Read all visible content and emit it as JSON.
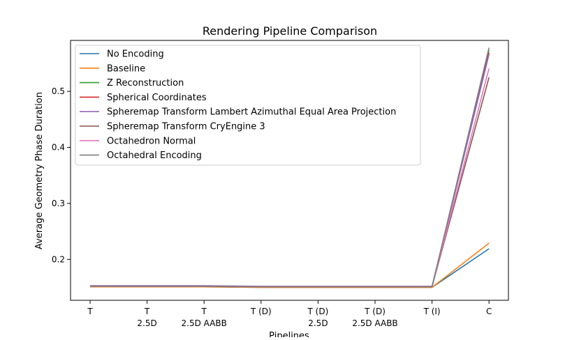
{
  "chart_data": {
    "type": "line",
    "title": "Rendering Pipeline Comparison",
    "xlabel": "Pipelines",
    "ylabel": "Average Geometry Phase Duration",
    "categories": [
      "T",
      "T\n2.5D",
      "T\n2.5D AABB",
      "T (D)",
      "T (D)\n2.5D",
      "T (D)\n2.5D AABB",
      "T (I)",
      "C"
    ],
    "yticks": [
      "0.2",
      "0.3",
      "0.4",
      "0.5"
    ],
    "ylim": [
      0.127,
      0.591
    ],
    "grid": false,
    "legend_position": "top-left",
    "series": [
      {
        "name": "No Encoding",
        "color": "#1f77b4",
        "values": [
          0.151,
          0.151,
          0.151,
          0.15,
          0.15,
          0.15,
          0.15,
          0.219
        ]
      },
      {
        "name": "Baseline",
        "color": "#ff7f0e",
        "values": [
          0.151,
          0.151,
          0.151,
          0.15,
          0.15,
          0.15,
          0.15,
          0.229
        ]
      },
      {
        "name": "Z Reconstruction",
        "color": "#2ca02c",
        "values": [
          0.152,
          0.152,
          0.152,
          0.151,
          0.151,
          0.151,
          0.151,
          0.574
        ]
      },
      {
        "name": "Spherical Coordinates",
        "color": "#d62728",
        "values": [
          0.152,
          0.152,
          0.152,
          0.151,
          0.151,
          0.151,
          0.151,
          0.569
        ]
      },
      {
        "name": "Spheremap Transform Lambert Azimuthal Equal Area Projection",
        "color": "#9467bd",
        "values": [
          0.153,
          0.153,
          0.153,
          0.152,
          0.152,
          0.152,
          0.152,
          0.566
        ]
      },
      {
        "name": "Spheremap Transform CryEngine 3",
        "color": "#8c564b",
        "values": [
          0.152,
          0.152,
          0.152,
          0.151,
          0.151,
          0.151,
          0.151,
          0.525
        ]
      },
      {
        "name": "Octahedron Normal",
        "color": "#e377c2",
        "values": [
          0.152,
          0.152,
          0.152,
          0.151,
          0.151,
          0.151,
          0.151,
          0.541
        ]
      },
      {
        "name": "Octahedral Encoding",
        "color": "#7f7f7f",
        "values": [
          0.152,
          0.152,
          0.152,
          0.151,
          0.151,
          0.151,
          0.151,
          0.578
        ]
      }
    ]
  }
}
